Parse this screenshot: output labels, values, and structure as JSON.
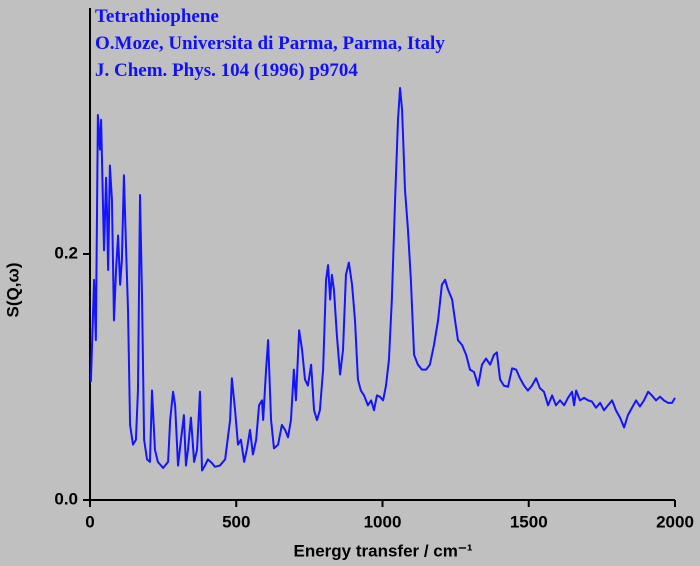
{
  "chart_data": {
    "type": "line",
    "title": "Tetrathiophene",
    "subtitle": [
      "O.Moze, Universita di Parma, Parma, Italy",
      "J. Chem. Phys. 104 (1996) p9704"
    ],
    "xlabel": "Energy transfer / cm⁻¹",
    "ylabel": "S(Q,ω)",
    "color": "#1414ff",
    "xlim": [
      0,
      2000
    ],
    "xticks": [
      0,
      500,
      1000,
      1500,
      2000
    ],
    "ylim": [
      0,
      0.4
    ],
    "yticks": [
      {
        "value": 0,
        "label": "0.0"
      },
      0.2
    ],
    "x": [
      3,
      14,
      20,
      27,
      34,
      38,
      44,
      48,
      55,
      58,
      62,
      68,
      75,
      82,
      89,
      96,
      103,
      109,
      116,
      123,
      130,
      137,
      147,
      157,
      164,
      171,
      178,
      185,
      195,
      205,
      212,
      222,
      232,
      250,
      267,
      274,
      284,
      291,
      301,
      311,
      321,
      328,
      335,
      345,
      356,
      366,
      376,
      383,
      393,
      403,
      417,
      427,
      444,
      462,
      479,
      485,
      496,
      506,
      516,
      527,
      537,
      547,
      557,
      568,
      578,
      588,
      592,
      602,
      609,
      619,
      629,
      643,
      656,
      667,
      677,
      687,
      697,
      704,
      715,
      725,
      735,
      745,
      756,
      766,
      776,
      786,
      797,
      807,
      814,
      821,
      827,
      834,
      844,
      855,
      865,
      875,
      885,
      896,
      906,
      916,
      926,
      937,
      950,
      961,
      971,
      981,
      991,
      1002,
      1012,
      1022,
      1032,
      1043,
      1053,
      1060,
      1067,
      1077,
      1087,
      1097,
      1108,
      1121,
      1135,
      1149,
      1162,
      1176,
      1190,
      1203,
      1214,
      1224,
      1238,
      1248,
      1258,
      1272,
      1286,
      1299,
      1313,
      1327,
      1340,
      1354,
      1368,
      1381,
      1391,
      1402,
      1415,
      1429,
      1443,
      1457,
      1470,
      1484,
      1497,
      1511,
      1525,
      1538,
      1552,
      1566,
      1580,
      1593,
      1607,
      1621,
      1634,
      1648,
      1655,
      1662,
      1675,
      1689,
      1703,
      1716,
      1730,
      1744,
      1757,
      1771,
      1785,
      1798,
      1812,
      1826,
      1839,
      1853,
      1867,
      1880,
      1894,
      1908,
      1921,
      1935,
      1949,
      1962,
      1976,
      1990,
      2000
    ],
    "values": [
      0.096,
      0.179,
      0.13,
      0.313,
      0.285,
      0.309,
      0.244,
      0.203,
      0.262,
      0.236,
      0.187,
      0.272,
      0.244,
      0.146,
      0.187,
      0.215,
      0.175,
      0.195,
      0.264,
      0.207,
      0.154,
      0.061,
      0.045,
      0.049,
      0.089,
      0.248,
      0.163,
      0.049,
      0.033,
      0.031,
      0.089,
      0.041,
      0.031,
      0.026,
      0.031,
      0.065,
      0.088,
      0.077,
      0.028,
      0.049,
      0.069,
      0.028,
      0.041,
      0.067,
      0.031,
      0.041,
      0.088,
      0.024,
      0.028,
      0.033,
      0.03,
      0.027,
      0.028,
      0.033,
      0.065,
      0.099,
      0.073,
      0.045,
      0.049,
      0.031,
      0.042,
      0.057,
      0.037,
      0.049,
      0.077,
      0.081,
      0.065,
      0.106,
      0.13,
      0.065,
      0.042,
      0.045,
      0.061,
      0.057,
      0.051,
      0.065,
      0.106,
      0.081,
      0.138,
      0.122,
      0.098,
      0.093,
      0.11,
      0.073,
      0.065,
      0.073,
      0.106,
      0.179,
      0.191,
      0.163,
      0.183,
      0.171,
      0.134,
      0.102,
      0.122,
      0.183,
      0.193,
      0.175,
      0.146,
      0.098,
      0.089,
      0.085,
      0.077,
      0.081,
      0.073,
      0.085,
      0.084,
      0.081,
      0.093,
      0.114,
      0.163,
      0.244,
      0.309,
      0.335,
      0.317,
      0.252,
      0.22,
      0.179,
      0.118,
      0.11,
      0.106,
      0.106,
      0.11,
      0.126,
      0.146,
      0.175,
      0.179,
      0.171,
      0.163,
      0.146,
      0.13,
      0.126,
      0.118,
      0.106,
      0.104,
      0.093,
      0.11,
      0.115,
      0.11,
      0.118,
      0.12,
      0.098,
      0.093,
      0.092,
      0.107,
      0.106,
      0.099,
      0.093,
      0.089,
      0.093,
      0.099,
      0.091,
      0.088,
      0.077,
      0.085,
      0.077,
      0.081,
      0.077,
      0.083,
      0.088,
      0.077,
      0.089,
      0.081,
      0.083,
      0.081,
      0.08,
      0.075,
      0.079,
      0.073,
      0.077,
      0.081,
      0.073,
      0.067,
      0.059,
      0.069,
      0.075,
      0.081,
      0.076,
      0.081,
      0.088,
      0.085,
      0.081,
      0.084,
      0.081,
      0.079,
      0.079,
      0.083
    ]
  }
}
